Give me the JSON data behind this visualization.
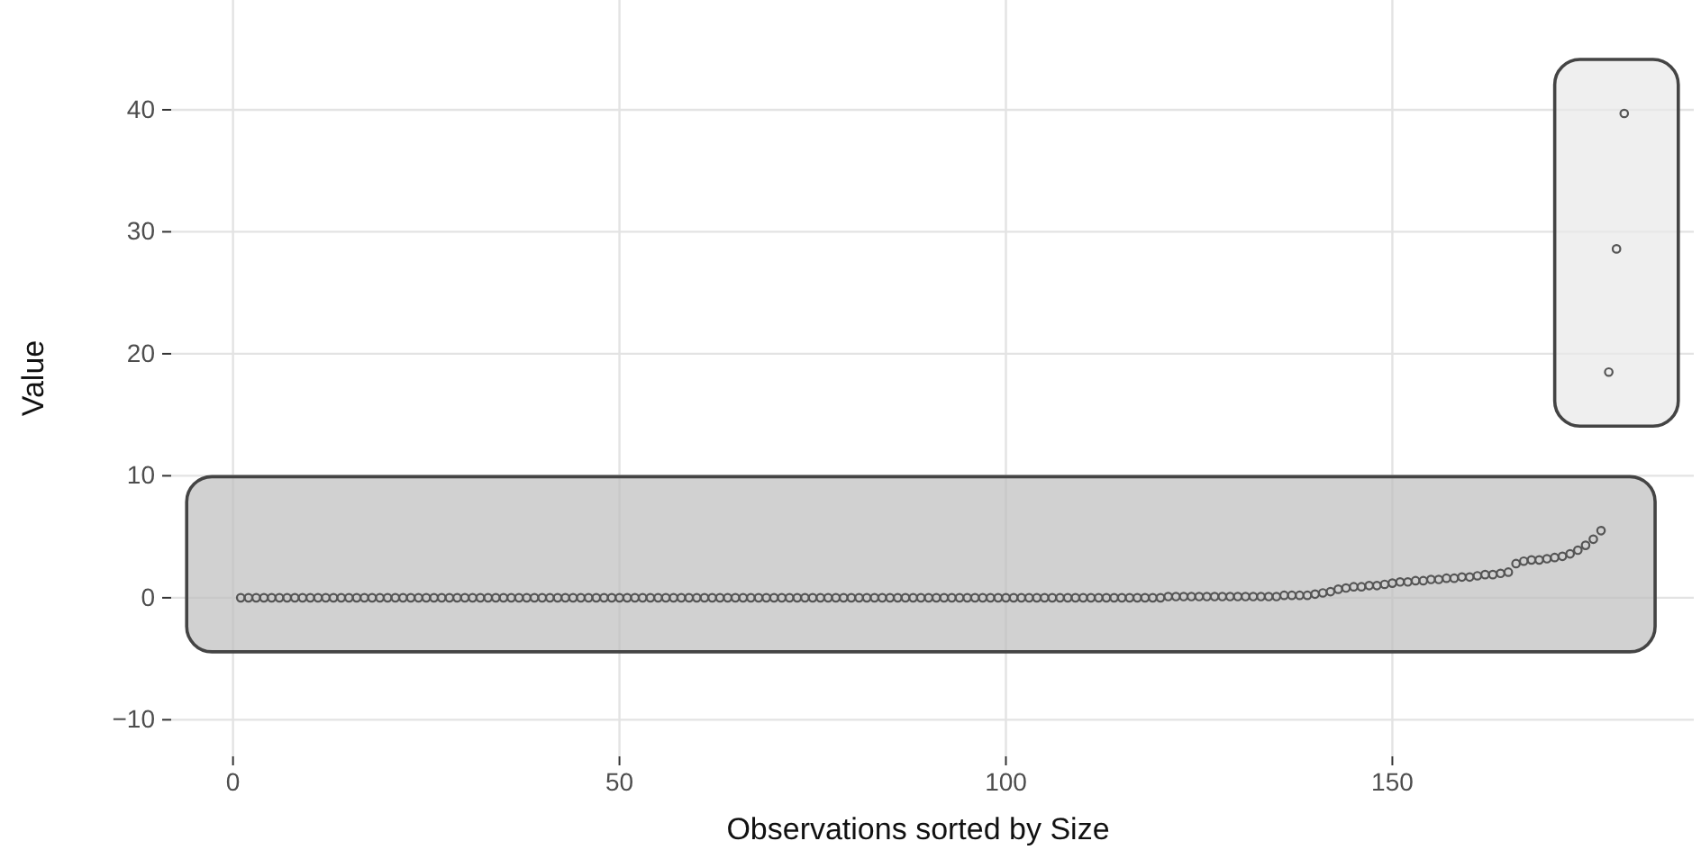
{
  "chart_data": {
    "type": "scatter",
    "xlabel": "Observations sorted by Size",
    "ylabel": "Value",
    "xlim": [
      -8,
      189
    ],
    "ylim": [
      -13,
      49
    ],
    "xticks": [
      0,
      50,
      100,
      150
    ],
    "yticks": [
      -10,
      0,
      10,
      20,
      30,
      40
    ],
    "grid": true,
    "marker": "circle",
    "series": [
      {
        "color": "#555555",
        "x": [
          1,
          2,
          3,
          4,
          5,
          6,
          7,
          8,
          9,
          10,
          11,
          12,
          13,
          14,
          15,
          16,
          17,
          18,
          19,
          20,
          21,
          22,
          23,
          24,
          25,
          26,
          27,
          28,
          29,
          30,
          31,
          32,
          33,
          34,
          35,
          36,
          37,
          38,
          39,
          40,
          41,
          42,
          43,
          44,
          45,
          46,
          47,
          48,
          49,
          50,
          51,
          52,
          53,
          54,
          55,
          56,
          57,
          58,
          59,
          60,
          61,
          62,
          63,
          64,
          65,
          66,
          67,
          68,
          69,
          70,
          71,
          72,
          73,
          74,
          75,
          76,
          77,
          78,
          79,
          80,
          81,
          82,
          83,
          84,
          85,
          86,
          87,
          88,
          89,
          90,
          91,
          92,
          93,
          94,
          95,
          96,
          97,
          98,
          99,
          100,
          101,
          102,
          103,
          104,
          105,
          106,
          107,
          108,
          109,
          110,
          111,
          112,
          113,
          114,
          115,
          116,
          117,
          118,
          119,
          120,
          121,
          122,
          123,
          124,
          125,
          126,
          127,
          128,
          129,
          130,
          131,
          132,
          133,
          134,
          135,
          136,
          137,
          138,
          139,
          140,
          141,
          142,
          143,
          144,
          145,
          146,
          147,
          148,
          149,
          150,
          151,
          152,
          153,
          154,
          155,
          156,
          157,
          158,
          159,
          160,
          161,
          162,
          163,
          164,
          165,
          166,
          167,
          168,
          169,
          170,
          171,
          172,
          173,
          174,
          175,
          176,
          177
        ],
        "values": [
          0,
          0,
          0,
          0,
          0,
          0,
          0,
          0,
          0,
          0,
          0,
          0,
          0,
          0,
          0,
          0,
          0,
          0,
          0,
          0,
          0,
          0,
          0,
          0,
          0,
          0,
          0,
          0,
          0,
          0,
          0,
          0,
          0,
          0,
          0,
          0,
          0,
          0,
          0,
          0,
          0,
          0,
          0,
          0,
          0,
          0,
          0,
          0,
          0,
          0,
          0,
          0,
          0,
          0,
          0,
          0,
          0,
          0,
          0,
          0,
          0,
          0,
          0,
          0,
          0,
          0,
          0,
          0,
          0,
          0,
          0,
          0,
          0,
          0,
          0,
          0,
          0,
          0,
          0,
          0,
          0,
          0,
          0,
          0,
          0,
          0,
          0,
          0,
          0,
          0,
          0,
          0,
          0,
          0,
          0,
          0,
          0,
          0,
          0,
          0,
          0,
          0,
          0,
          0,
          0,
          0,
          0,
          0,
          0,
          0,
          0,
          0,
          0,
          0,
          0,
          0,
          0,
          0,
          0,
          0,
          0.1,
          0.1,
          0.1,
          0.1,
          0.1,
          0.1,
          0.1,
          0.1,
          0.1,
          0.1,
          0.1,
          0.1,
          0.1,
          0.1,
          0.1,
          0.2,
          0.2,
          0.2,
          0.2,
          0.3,
          0.4,
          0.5,
          0.7,
          0.8,
          0.9,
          0.9,
          1.0,
          1.0,
          1.1,
          1.2,
          1.3,
          1.3,
          1.4,
          1.4,
          1.5,
          1.5,
          1.6,
          1.6,
          1.7,
          1.7,
          1.8,
          1.9,
          1.9,
          2.0,
          2.1,
          2.8,
          3.0,
          3.1,
          3.1,
          3.2,
          3.3,
          3.4,
          3.6,
          3.9,
          4.3,
          4.8,
          5.5
        ]
      },
      {
        "color": "#555555",
        "x": [
          178,
          179,
          180
        ],
        "values": [
          18.5,
          28.6,
          39.7
        ]
      }
    ]
  }
}
